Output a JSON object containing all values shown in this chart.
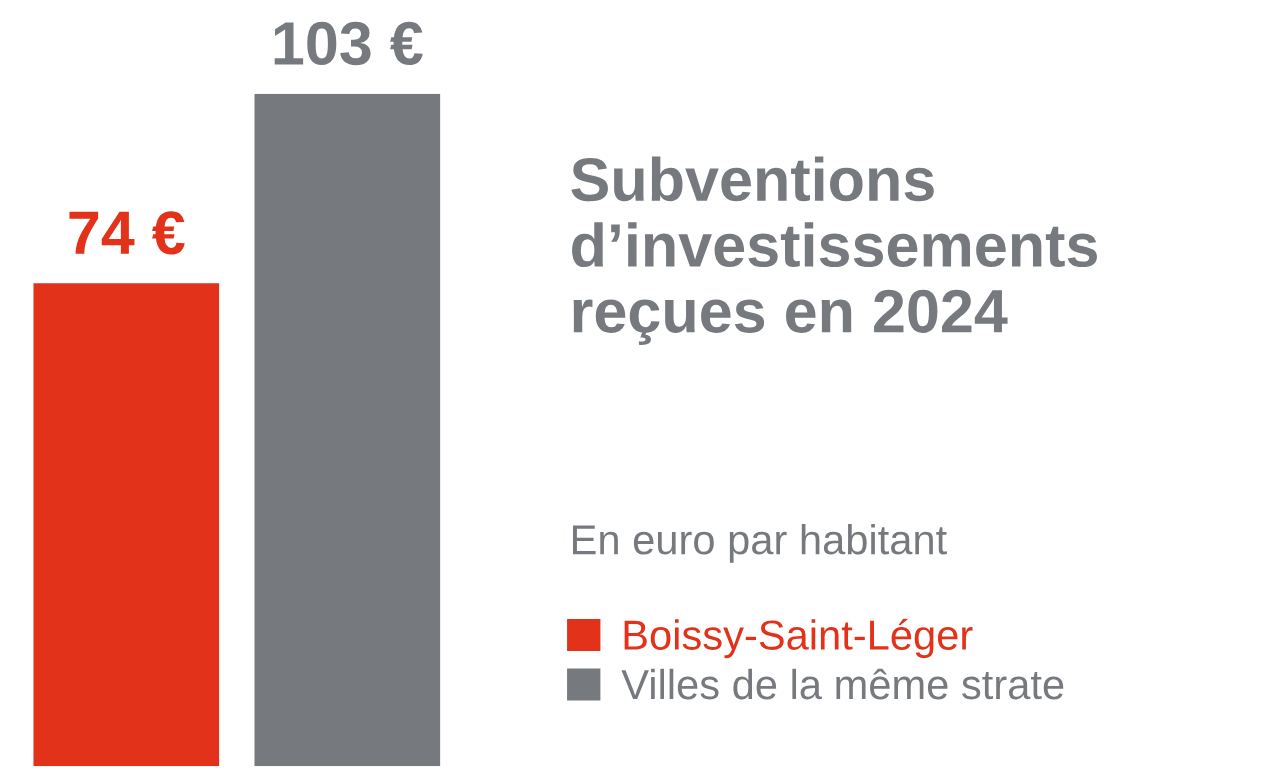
{
  "chart_data": {
    "type": "bar",
    "title": "Subventions d’investissements reçues en 2024",
    "subtitle": "En euro par habitant",
    "categories": [
      null
    ],
    "series": [
      {
        "name": "Boissy-Saint-Léger",
        "color": "#e2321a",
        "values": [
          74
        ],
        "value_labels": [
          "74 €"
        ]
      },
      {
        "name": "Villes de la même strate",
        "color": "#767a7e",
        "values": [
          103
        ],
        "value_labels": [
          "103 €"
        ]
      }
    ],
    "legend": "right"
  }
}
